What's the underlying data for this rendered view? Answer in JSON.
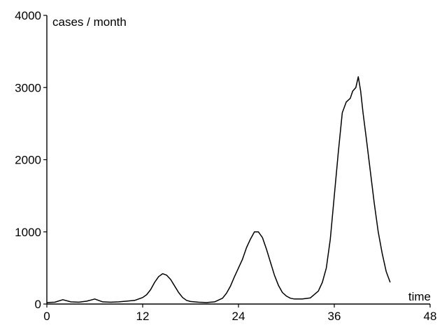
{
  "chart_data": {
    "type": "line",
    "title": "",
    "xlabel": "time",
    "ylabel": "cases / month",
    "xlim": [
      0,
      48
    ],
    "ylim": [
      0,
      4000
    ],
    "xticks": [
      0,
      12,
      24,
      36,
      48
    ],
    "yticks": [
      0,
      1000,
      2000,
      3000,
      4000
    ],
    "grid": false,
    "series": [
      {
        "x": [
          0,
          1,
          2,
          3,
          4,
          5,
          6,
          7,
          8,
          9,
          10,
          11,
          12,
          12.5,
          13,
          13.5,
          14,
          14.5,
          15,
          15.5,
          16,
          16.5,
          17,
          17.5,
          18,
          19,
          20,
          21,
          22,
          22.5,
          23,
          23.5,
          24,
          24.5,
          25,
          25.5,
          26,
          26.5,
          27,
          27.5,
          28,
          28.5,
          29,
          29.5,
          30,
          30.5,
          31,
          32,
          33,
          34,
          34.5,
          35,
          35.5,
          36,
          36.5,
          37,
          37.5,
          38,
          38.3,
          38.7,
          39,
          39.3,
          39.6,
          40,
          40.5,
          41,
          41.5,
          42,
          42.5,
          43
        ],
        "y": [
          20,
          25,
          60,
          30,
          25,
          40,
          70,
          30,
          25,
          30,
          40,
          50,
          90,
          130,
          200,
          300,
          380,
          420,
          400,
          340,
          250,
          160,
          90,
          50,
          35,
          25,
          20,
          30,
          80,
          150,
          250,
          380,
          500,
          620,
          780,
          900,
          1000,
          1000,
          920,
          760,
          580,
          400,
          260,
          160,
          110,
          80,
          70,
          70,
          85,
          180,
          300,
          500,
          900,
          1500,
          2100,
          2650,
          2800,
          2850,
          2950,
          3000,
          3150,
          2950,
          2650,
          2300,
          1850,
          1400,
          1000,
          700,
          450,
          300
        ]
      }
    ]
  }
}
